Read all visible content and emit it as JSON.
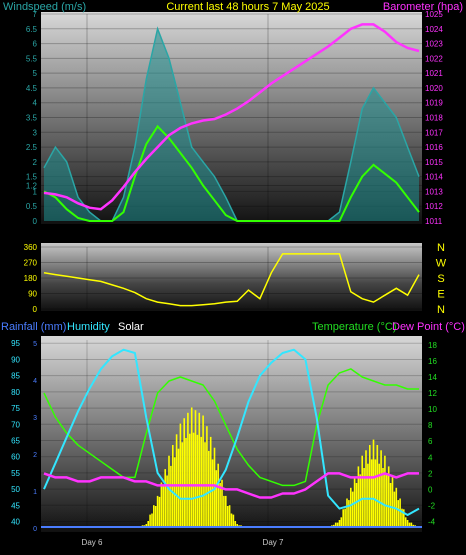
{
  "header": {
    "left_title": "Windspeed (m/s)",
    "center_title": "Current last 48 hours 7 May 2025",
    "right_title": "Barometer (hpa)"
  },
  "colors": {
    "wind": "#2aa6a6",
    "gust_fill": "#1f8f8f",
    "green": "#33ff00",
    "magenta": "#ff33ff",
    "yellow": "#ffff00",
    "cyan": "#33e6ff",
    "blue": "#4a7dff",
    "label_green": "#22dd22",
    "white": "#ffffff"
  },
  "chart_data": [
    {
      "type": "line",
      "name": "wind-barometer",
      "x_day_labels": [
        "Day 6",
        "Day 7"
      ],
      "left_axis_ticks": [
        "7",
        "6.5",
        "6",
        "5.5",
        "5",
        "4.5",
        "4",
        "3.5",
        "3",
        "2.5",
        "2",
        "1.5",
        "1.2",
        "1",
        "0.5",
        "0"
      ],
      "right_axis_ticks": [
        "1025",
        "1024",
        "1023",
        "1022",
        "1021",
        "1020",
        "1019",
        "1018",
        "1017",
        "1016",
        "1015",
        "1014",
        "1013",
        "1012",
        "1011"
      ],
      "ylim_wind": [
        0,
        7
      ],
      "ylim_baro": [
        1011,
        1025
      ],
      "barometer": [
        1012.9,
        1012.8,
        1012.6,
        1012.2,
        1011.9,
        1011.8,
        1012.4,
        1013.3,
        1014.3,
        1015.2,
        1016.0,
        1016.8,
        1017.3,
        1017.6,
        1017.8,
        1017.9,
        1018.2,
        1018.6,
        1019.1,
        1019.7,
        1020.3,
        1020.8,
        1021.3,
        1021.8,
        1022.3,
        1022.8,
        1023.4,
        1024.0,
        1024.3,
        1024.3,
        1023.8,
        1023.1,
        1022.7,
        1022.5
      ],
      "wind_gust": [
        1.8,
        2.5,
        2.0,
        0.8,
        0.3,
        0.0,
        0.0,
        0.8,
        2.5,
        4.8,
        6.5,
        5.5,
        4.0,
        2.5,
        2.0,
        1.5,
        0.8,
        0.0,
        0.0,
        0.0,
        0.0,
        0.0,
        0.0,
        0.0,
        0.0,
        0.0,
        0.3,
        2.0,
        3.8,
        4.5,
        4.0,
        3.5,
        2.5,
        1.5
      ],
      "wind_avg": [
        1.0,
        0.8,
        0.4,
        0.1,
        0.0,
        0.0,
        0.0,
        0.3,
        1.5,
        2.6,
        3.2,
        2.8,
        2.3,
        1.8,
        1.2,
        0.7,
        0.2,
        0.0,
        0.0,
        0.0,
        0.0,
        0.0,
        0.0,
        0.0,
        0.0,
        0.0,
        0.0,
        0.8,
        1.5,
        1.9,
        1.6,
        1.3,
        0.8,
        0.3
      ]
    },
    {
      "type": "line",
      "name": "wind-direction",
      "left_axis_ticks": [
        "360",
        "270",
        "180",
        "90",
        "0"
      ],
      "right_axis_letters": [
        "N",
        "W",
        "S",
        "E",
        "N"
      ],
      "ylim": [
        0,
        360
      ],
      "direction": [
        210,
        200,
        190,
        180,
        170,
        160,
        140,
        120,
        95,
        60,
        40,
        30,
        20,
        20,
        25,
        30,
        40,
        45,
        110,
        60,
        210,
        320,
        320,
        320,
        320,
        320,
        320,
        100,
        60,
        40,
        80,
        120,
        80,
        200
      ]
    },
    {
      "type": "line",
      "name": "rain-humidity-temperature",
      "top_labels": {
        "rainfall": "Rainfall (mm)",
        "humidity": "Humidity",
        "solar": "Solar",
        "temperature": "Temperature (°C)",
        "dew_point": "Dew Point (°C)"
      },
      "x_day_labels": [
        "Day 6",
        "Day 7"
      ],
      "humidity_ticks": [
        "95",
        "90",
        "85",
        "80",
        "75",
        "70",
        "65",
        "60",
        "55",
        "50",
        "45",
        "40"
      ],
      "rain_ticks": [
        "5",
        "4",
        "3",
        "2",
        "1",
        "0"
      ],
      "temp_ticks": [
        "18",
        "16",
        "14",
        "12",
        "10",
        "8",
        "6",
        "4",
        "2",
        "0",
        "-2",
        "-4"
      ],
      "ylim_humidity": [
        38,
        96
      ],
      "ylim_temp": [
        -4.8,
        18.6
      ],
      "humidity": [
        50,
        58,
        66,
        74,
        81,
        87,
        91,
        93,
        92,
        72,
        55,
        50,
        47,
        47,
        48,
        50,
        56,
        66,
        77,
        85,
        89,
        92,
        93,
        90,
        72,
        48,
        44,
        45,
        47,
        47,
        45,
        44,
        42,
        44
      ],
      "temperature": [
        12,
        9,
        7,
        5.5,
        4.5,
        3.5,
        2.5,
        1.5,
        1.5,
        7,
        12,
        13.5,
        14,
        13.5,
        13,
        11,
        8,
        5,
        3,
        1.5,
        1.0,
        0.5,
        0.5,
        1.0,
        8,
        13,
        14.5,
        15,
        14,
        13.5,
        13,
        13,
        12.5,
        12.5
      ],
      "dew_point": [
        2.0,
        1.5,
        1.5,
        1.0,
        1.0,
        1.5,
        1.5,
        1.5,
        1.0,
        1.0,
        0.5,
        0.5,
        0.5,
        0.5,
        0.5,
        0.5,
        0.0,
        0.0,
        -0.5,
        -1.0,
        -1.0,
        -0.5,
        -0.5,
        0.0,
        1.0,
        2.0,
        2.0,
        1.5,
        1.5,
        1.5,
        2.0,
        1.5,
        2.0,
        2.0
      ],
      "solar": [
        0,
        0,
        0,
        0,
        0,
        0,
        0,
        0,
        0,
        0.5,
        4,
        9,
        13,
        15,
        14,
        10,
        4,
        0.5,
        0,
        0,
        0,
        0,
        0,
        0,
        0,
        0,
        1,
        5,
        9,
        11,
        9,
        5,
        1,
        0
      ]
    }
  ]
}
